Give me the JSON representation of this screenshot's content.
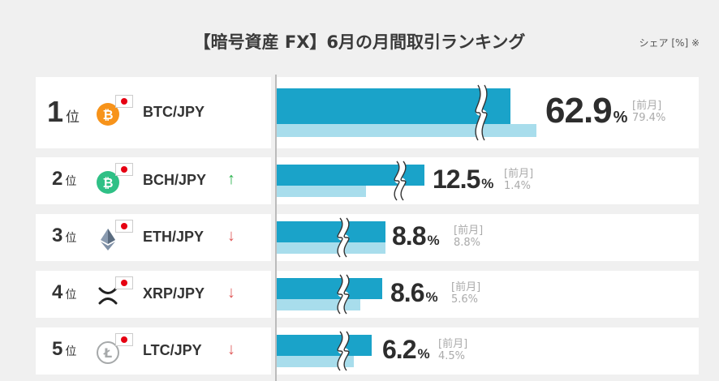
{
  "title": "【暗号資産 FX】6月の月間取引ランキング",
  "unit_note": "シェア [%] ※",
  "rank_suffix": "位",
  "prev_label": "[前月]",
  "percent_sign": "%",
  "colors": {
    "current": "#1aa3c9",
    "previous": "#a8ddec",
    "up": "#27b14b",
    "down": "#e05a5a"
  },
  "rows": [
    {
      "rank": "1",
      "pair": "BTC/JPY",
      "coin_icon": "bitcoin-icon",
      "coin_glyph": "₿",
      "coin_color": "#f7931a",
      "trend": "",
      "trend_glyph": "",
      "share": "62.9",
      "prev_share": "79.4"
    },
    {
      "rank": "2",
      "pair": "BCH/JPY",
      "coin_icon": "bitcoin-cash-icon",
      "coin_glyph": "₿",
      "coin_color": "#2fc086",
      "trend": "up",
      "trend_glyph": "↑",
      "share": "12.5",
      "prev_share": "1.4"
    },
    {
      "rank": "3",
      "pair": "ETH/JPY",
      "coin_icon": "ethereum-icon",
      "coin_glyph": "",
      "coin_color": "#627eea",
      "trend": "down",
      "trend_glyph": "↓",
      "share": "8.8",
      "prev_share": "8.8"
    },
    {
      "rank": "4",
      "pair": "XRP/JPY",
      "coin_icon": "xrp-icon",
      "coin_glyph": "",
      "coin_color": "#222222",
      "trend": "down",
      "trend_glyph": "↓",
      "share": "8.6",
      "prev_share": "5.6"
    },
    {
      "rank": "5",
      "pair": "LTC/JPY",
      "coin_icon": "litecoin-icon",
      "coin_glyph": "Ł",
      "coin_color": "#a6a9aa",
      "trend": "down",
      "trend_glyph": "↓",
      "share": "6.2",
      "prev_share": "4.5"
    }
  ],
  "chart_data": {
    "type": "bar",
    "categories": [
      "BTC/JPY",
      "BCH/JPY",
      "ETH/JPY",
      "XRP/JPY",
      "LTC/JPY"
    ],
    "series": [
      {
        "values": [
          62.9,
          12.5,
          8.8,
          8.6,
          6.2
        ]
      },
      {
        "name": "前月",
        "values": [
          79.4,
          1.4,
          8.8,
          5.6,
          4.5
        ]
      }
    ],
    "axis_break": true
  }
}
